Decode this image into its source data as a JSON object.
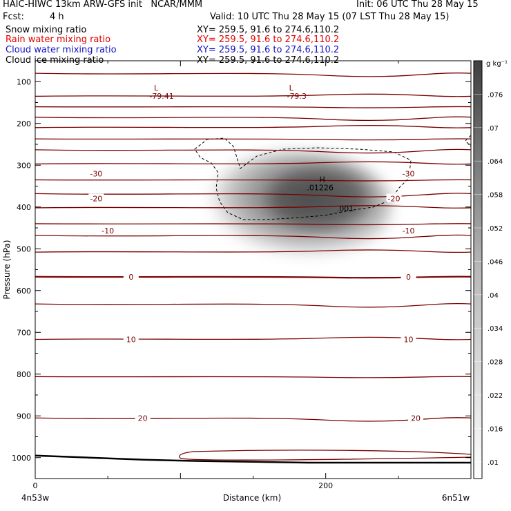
{
  "header": {
    "title": "HAIC-HIWC 13km ARW-GFS init   NCAR/MMM",
    "init": "Init: 06 UTC Thu 28 May 15",
    "fcst_label": "Fcst:",
    "fcst_value": "4 h",
    "valid": "Valid: 10 UTC Thu 28 May 15 (07 LST Thu 28 May 15)",
    "fields": [
      {
        "name": "Snow mixing ratio",
        "xy": "XY= 259.5, 91.6 to 274.6,110.2",
        "color": "#000000"
      },
      {
        "name": "Rain water mixing ratio",
        "xy": "XY= 259.5, 91.6 to 274.6,110.2",
        "color": "#e00000"
      },
      {
        "name": "Cloud water mixing ratio",
        "xy": "XY= 259.5, 91.6 to 274.6,110.2",
        "color": "#1010c8"
      },
      {
        "name": "Cloud ice mixing ratio",
        "xy": "XY= 259.5, 91.6 to 274.6,110.2",
        "color": "#000000"
      }
    ]
  },
  "chart_data": {
    "type": "heatmap",
    "xlabel": "Distance (km)",
    "ylabel": "Pressure (hPa)",
    "xlim": [
      0,
      300
    ],
    "ylim": [
      1050,
      50
    ],
    "x_ticks": [
      0,
      200
    ],
    "y_ticks": [
      100,
      200,
      300,
      400,
      500,
      600,
      700,
      800,
      900,
      1000
    ],
    "endpoints": {
      "left": "4n53w",
      "right": "6n51w"
    },
    "colorbar": {
      "unit": "g kg⁻¹",
      "ticks": [
        ".01",
        ".016",
        ".022",
        ".028",
        ".034",
        ".04",
        ".046",
        ".052",
        ".058",
        ".064",
        ".07",
        ".076"
      ],
      "tick_values": [
        0.01,
        0.016,
        0.022,
        0.028,
        0.034,
        0.04,
        0.046,
        0.052,
        0.058,
        0.064,
        0.07,
        0.076
      ],
      "vmin": 0.007,
      "vmax": 0.082
    },
    "snow_max": {
      "label": "H",
      "value": ".01226",
      "x": 200,
      "p": 380
    },
    "dashed_contour_label": ".001",
    "temperature_lows": [
      {
        "label": "L",
        "value": "-79.41",
        "x": 88,
        "p": 95
      },
      {
        "label": "L",
        "value": "-79.3",
        "x": 181,
        "p": 95
      }
    ],
    "temperature_labels": [
      {
        "text": "-30",
        "x": 42,
        "p": 320
      },
      {
        "text": "-30",
        "x": 257,
        "p": 320
      },
      {
        "text": "-20",
        "x": 42,
        "p": 380
      },
      {
        "text": "-20",
        "x": 247,
        "p": 380
      },
      {
        "text": "-10",
        "x": 50,
        "p": 457
      },
      {
        "text": "-10",
        "x": 257,
        "p": 457
      },
      {
        "text": "0",
        "x": 66,
        "p": 567
      },
      {
        "text": "0",
        "x": 257,
        "p": 567
      },
      {
        "text": "10",
        "x": 66,
        "p": 717
      },
      {
        "text": "10",
        "x": 257,
        "p": 717
      },
      {
        "text": "20",
        "x": 74,
        "p": 905
      },
      {
        "text": "20",
        "x": 262,
        "p": 905
      }
    ],
    "isotherm_pressures": [
      80,
      135,
      160,
      185,
      210,
      237,
      263,
      297,
      335,
      368,
      402,
      440,
      468,
      508,
      567,
      632,
      717,
      806,
      905
    ],
    "terrain_pressures": [
      995,
      1000,
      1005,
      1008,
      1010,
      1012,
      1012,
      1012,
      1012
    ]
  }
}
